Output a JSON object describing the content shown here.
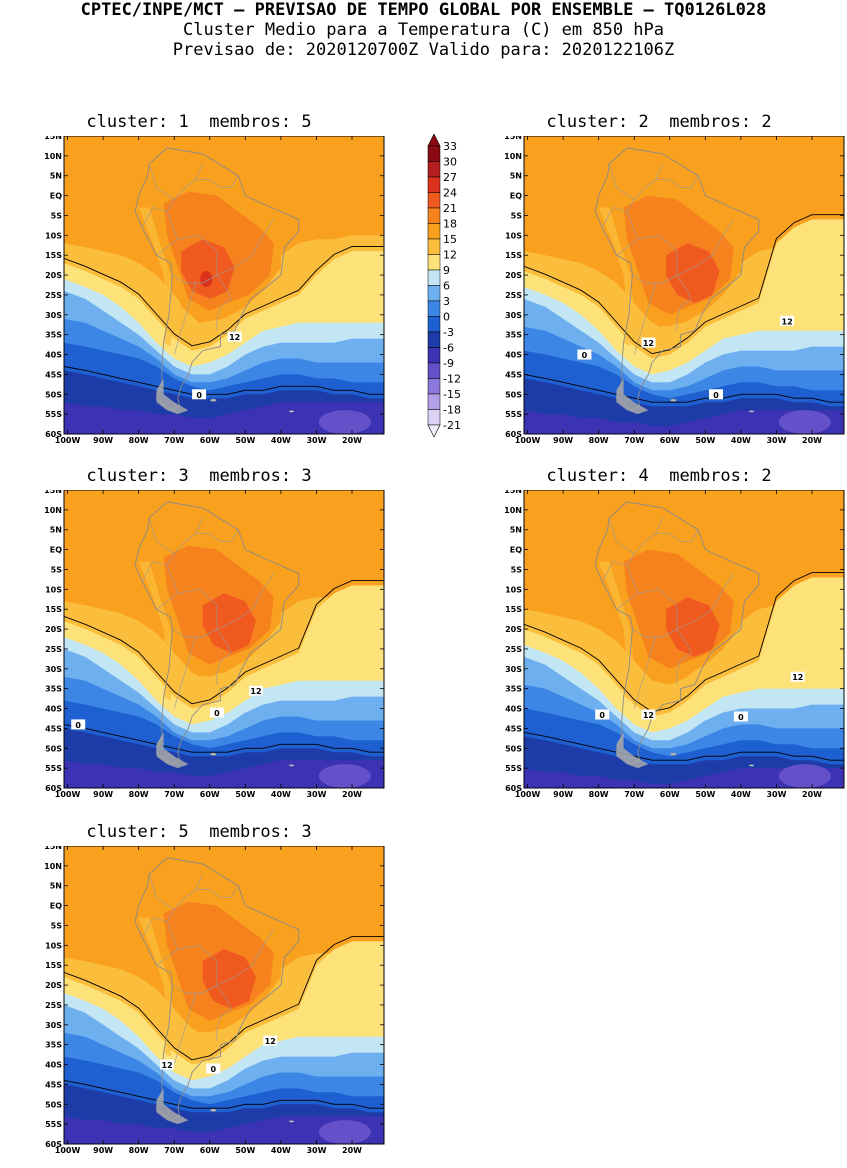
{
  "header": {
    "line1": "CPTEC/INPE/MCT – PREVISAO DE TEMPO GLOBAL POR ENSEMBLE – TQ0126L028",
    "line2": "Cluster Medio para a Temperatura (C) em 850 hPa",
    "line3": "Previsao de: 2020120700Z    Valido para: 2020122106Z"
  },
  "lat_labels": [
    "15N",
    "10N",
    "5N",
    "EQ",
    "5S",
    "10S",
    "15S",
    "20S",
    "25S",
    "30S",
    "35S",
    "40S",
    "45S",
    "50S",
    "55S",
    "60S"
  ],
  "lon_labels": [
    "100W",
    "90W",
    "80W",
    "70W",
    "60W",
    "50W",
    "40W",
    "30W",
    "20W"
  ],
  "colorbar": {
    "levels": [
      "33",
      "30",
      "27",
      "24",
      "21",
      "18",
      "15",
      "12",
      "9",
      "6",
      "3",
      "0",
      "-3",
      "-6",
      "-9",
      "-12",
      "-15",
      "-18",
      "-21"
    ],
    "colors": [
      "#8b0a14",
      "#b41e1e",
      "#dc321e",
      "#f05a1e",
      "#f6821e",
      "#f9a01e",
      "#fbbe3c",
      "#fde27a",
      "#c3e6f5",
      "#6eaff0",
      "#3c87e6",
      "#1e5fd2",
      "#1e3ca8",
      "#3c32b4",
      "#6450c8",
      "#8c78dc",
      "#b4a0e6",
      "#dcd2f5"
    ]
  },
  "panels": [
    {
      "cluster_label": "cluster:",
      "cluster": "1",
      "members_label": "membros:",
      "members": "5",
      "contours": [
        "12",
        "0"
      ]
    },
    {
      "cluster_label": "cluster:",
      "cluster": "2",
      "members_label": "membros:",
      "members": "2",
      "contours": [
        "12",
        "12",
        "0",
        "0"
      ]
    },
    {
      "cluster_label": "cluster:",
      "cluster": "3",
      "members_label": "membros:",
      "members": "3",
      "contours": [
        "12",
        "0",
        "0"
      ]
    },
    {
      "cluster_label": "cluster:",
      "cluster": "4",
      "members_label": "membros:",
      "members": "2",
      "contours": [
        "12",
        "12",
        "0",
        "0"
      ]
    },
    {
      "cluster_label": "cluster:",
      "cluster": "5",
      "members_label": "membros:",
      "members": "3",
      "contours": [
        "12",
        "12",
        "0"
      ]
    }
  ]
}
